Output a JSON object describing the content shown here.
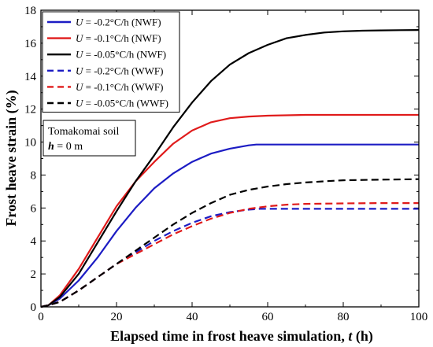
{
  "chart_data": {
    "type": "line",
    "xlabel_main": "Elapsed time in frost heave simulation, ",
    "xlabel_var": "t",
    "xlabel_unit": " (h)",
    "ylabel": "Frost heave strain (%)",
    "xlim": [
      0,
      100
    ],
    "ylim": [
      0,
      18
    ],
    "x_ticks": [
      "0",
      "20",
      "40",
      "60",
      "80",
      "100"
    ],
    "y_ticks": [
      "0",
      "2",
      "4",
      "6",
      "8",
      "10",
      "12",
      "14",
      "16",
      "18"
    ],
    "annotation": {
      "line1": "Tomakomai soil",
      "line2_var": "h",
      "line2_rest": " = 0 m"
    },
    "series": [
      {
        "name": "U = -0.2°C/h (NWF)",
        "var": "U",
        "label": " = -0.2°C/h (NWF)",
        "color": "#1c1cc4",
        "dash": false,
        "x": [
          0,
          2,
          5,
          10,
          15,
          20,
          25,
          30,
          35,
          40,
          45,
          50,
          55,
          57,
          60,
          70,
          80,
          90,
          100
        ],
        "y": [
          0,
          0.1,
          0.5,
          1.6,
          3.0,
          4.6,
          6.0,
          7.2,
          8.1,
          8.8,
          9.3,
          9.6,
          9.8,
          9.85,
          9.85,
          9.85,
          9.85,
          9.85,
          9.85
        ]
      },
      {
        "name": "U = -0.1°C/h (NWF)",
        "var": "U",
        "label": " = -0.1°C/h (NWF)",
        "color": "#e01b1b",
        "dash": false,
        "x": [
          0,
          2,
          5,
          10,
          15,
          20,
          25,
          30,
          35,
          40,
          45,
          50,
          55,
          60,
          70,
          80,
          90,
          100
        ],
        "y": [
          0,
          0.1,
          0.7,
          2.3,
          4.2,
          6.1,
          7.6,
          8.8,
          9.9,
          10.7,
          11.2,
          11.45,
          11.55,
          11.6,
          11.65,
          11.65,
          11.65,
          11.65
        ]
      },
      {
        "name": "U = -0.05°C/h (NWF)",
        "var": "U",
        "label": " = -0.05°C/h (NWF)",
        "color": "#000000",
        "dash": false,
        "x": [
          0,
          2,
          5,
          10,
          15,
          20,
          25,
          30,
          35,
          40,
          45,
          50,
          55,
          60,
          65,
          70,
          75,
          80,
          85,
          90,
          95,
          100
        ],
        "y": [
          0,
          0.1,
          0.6,
          2.0,
          3.9,
          5.8,
          7.6,
          9.2,
          10.9,
          12.4,
          13.7,
          14.7,
          15.4,
          15.9,
          16.3,
          16.5,
          16.65,
          16.72,
          16.76,
          16.78,
          16.79,
          16.8
        ]
      },
      {
        "name": "U = -0.2°C/h (WWF)",
        "var": "U",
        "label": " = -0.2°C/h (WWF)",
        "color": "#1c1cc4",
        "dash": true,
        "x": [
          0,
          2,
          5,
          10,
          15,
          20,
          25,
          30,
          35,
          40,
          45,
          50,
          55,
          58,
          60,
          70,
          80,
          90,
          100
        ],
        "y": [
          0,
          0.1,
          0.3,
          1.0,
          1.8,
          2.6,
          3.3,
          4.0,
          4.6,
          5.1,
          5.5,
          5.75,
          5.9,
          5.95,
          5.95,
          5.95,
          5.95,
          5.95,
          5.95
        ]
      },
      {
        "name": "U = -0.1°C/h (WWF)",
        "var": "U",
        "label": " = -0.1°C/h (WWF)",
        "color": "#e01b1b",
        "dash": true,
        "x": [
          0,
          2,
          5,
          10,
          15,
          20,
          25,
          30,
          35,
          40,
          45,
          50,
          55,
          60,
          65,
          70,
          80,
          90,
          100
        ],
        "y": [
          0,
          0.1,
          0.3,
          1.0,
          1.8,
          2.6,
          3.2,
          3.8,
          4.4,
          4.9,
          5.35,
          5.7,
          5.95,
          6.1,
          6.2,
          6.25,
          6.28,
          6.3,
          6.3
        ]
      },
      {
        "name": "U = -0.05°C/h (WWF)",
        "var": "U",
        "label": " = -0.05°C/h (WWF)",
        "color": "#000000",
        "dash": true,
        "x": [
          0,
          2,
          5,
          10,
          15,
          20,
          25,
          30,
          35,
          40,
          45,
          50,
          55,
          60,
          65,
          70,
          75,
          80,
          90,
          100
        ],
        "y": [
          0,
          0.1,
          0.3,
          1.0,
          1.8,
          2.6,
          3.4,
          4.2,
          5.0,
          5.7,
          6.3,
          6.8,
          7.1,
          7.3,
          7.45,
          7.55,
          7.62,
          7.68,
          7.72,
          7.75
        ]
      }
    ]
  }
}
